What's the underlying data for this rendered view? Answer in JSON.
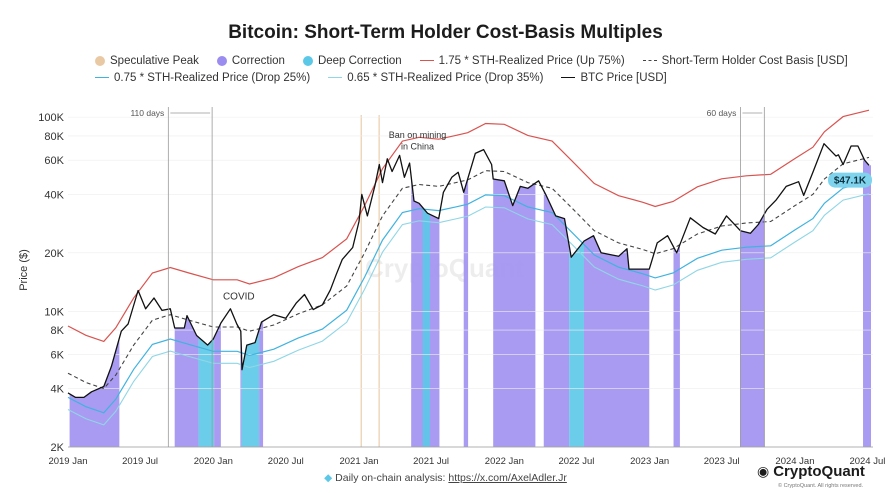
{
  "chart_data": {
    "type": "line",
    "title": "Bitcoin: Short-Term Holder Cost-Basis Multiples",
    "ylabel": "Price ($)",
    "xlabel": "",
    "yscale": "log",
    "ylim": [
      2000,
      130000
    ],
    "xlim": [
      "2019-01-01",
      "2024-07-15"
    ],
    "yticks": [
      {
        "v": 2000,
        "label": "2K"
      },
      {
        "v": 4000,
        "label": "4K"
      },
      {
        "v": 6000,
        "label": "6K"
      },
      {
        "v": 8000,
        "label": "8K"
      },
      {
        "v": 10000,
        "label": "10K"
      },
      {
        "v": 20000,
        "label": "20K"
      },
      {
        "v": 40000,
        "label": "40K"
      },
      {
        "v": 60000,
        "label": "60K"
      },
      {
        "v": 80000,
        "label": "80K"
      },
      {
        "v": 100000,
        "label": "100K"
      }
    ],
    "xticks": [
      {
        "date": "2019-01-01",
        "label": "2019 Jan"
      },
      {
        "date": "2019-07-01",
        "label": "2019 Jul"
      },
      {
        "date": "2020-01-01",
        "label": "2020 Jan"
      },
      {
        "date": "2020-07-01",
        "label": "2020 Jul"
      },
      {
        "date": "2021-01-01",
        "label": "2021 Jan"
      },
      {
        "date": "2021-07-01",
        "label": "2021 Jul"
      },
      {
        "date": "2022-01-01",
        "label": "2022 Jan"
      },
      {
        "date": "2022-07-01",
        "label": "2022 Jul"
      },
      {
        "date": "2023-01-01",
        "label": "2023 Jan"
      },
      {
        "date": "2023-07-01",
        "label": "2023 Jul"
      },
      {
        "date": "2024-01-01",
        "label": "2024 Jan"
      },
      {
        "date": "2024-07-01",
        "label": "2024 Jul"
      }
    ],
    "legend": [
      {
        "name": "Speculative Peak",
        "kind": "dot",
        "color": "#e9c9a3"
      },
      {
        "name": "Correction",
        "kind": "dot",
        "color": "#9b8cf0"
      },
      {
        "name": "Deep Correction",
        "kind": "dot",
        "color": "#5cc8e8"
      },
      {
        "name": "1.75 * STH-Realized Price (Up 75%)",
        "kind": "line",
        "color": "#d9534f"
      },
      {
        "name": "Short-Term Holder Cost Basis [USD]",
        "kind": "dash",
        "color": "#444444"
      },
      {
        "name": "0.75 * STH-Realized Price (Drop 25%)",
        "kind": "line",
        "color": "#3fb3df"
      },
      {
        "name": "0.65 * STH-Realized Price (Drop 35%)",
        "kind": "line",
        "color": "#8fd6e6"
      },
      {
        "name": "BTC Price [USD]",
        "kind": "line",
        "color": "#111111"
      }
    ],
    "btc_price": [
      [
        "2019-01-01",
        3800
      ],
      [
        "2019-01-20",
        3600
      ],
      [
        "2019-02-10",
        3600
      ],
      [
        "2019-03-01",
        3850
      ],
      [
        "2019-04-01",
        4100
      ],
      [
        "2019-04-20",
        5200
      ],
      [
        "2019-05-15",
        7900
      ],
      [
        "2019-06-01",
        8600
      ],
      [
        "2019-06-26",
        12800
      ],
      [
        "2019-07-15",
        10300
      ],
      [
        "2019-08-05",
        11700
      ],
      [
        "2019-08-25",
        10100
      ],
      [
        "2019-09-15",
        10300
      ],
      [
        "2019-09-26",
        8200
      ],
      [
        "2019-10-20",
        8200
      ],
      [
        "2019-10-27",
        9500
      ],
      [
        "2019-11-20",
        7500
      ],
      [
        "2019-12-18",
        6700
      ],
      [
        "2020-01-01",
        7200
      ],
      [
        "2020-01-20",
        8700
      ],
      [
        "2020-02-13",
        10300
      ],
      [
        "2020-02-29",
        8600
      ],
      [
        "2020-03-10",
        7900
      ],
      [
        "2020-03-13",
        5000
      ],
      [
        "2020-03-25",
        6700
      ],
      [
        "2020-04-15",
        6900
      ],
      [
        "2020-05-01",
        8800
      ],
      [
        "2020-06-01",
        9600
      ],
      [
        "2020-07-01",
        9200
      ],
      [
        "2020-07-27",
        11000
      ],
      [
        "2020-08-17",
        12200
      ],
      [
        "2020-09-08",
        10200
      ],
      [
        "2020-10-01",
        10800
      ],
      [
        "2020-10-21",
        12900
      ],
      [
        "2020-11-05",
        15500
      ],
      [
        "2020-11-20",
        18500
      ],
      [
        "2020-12-16",
        21300
      ],
      [
        "2021-01-01",
        29000
      ],
      [
        "2021-01-08",
        40000
      ],
      [
        "2021-01-22",
        31000
      ],
      [
        "2021-02-10",
        44500
      ],
      [
        "2021-02-21",
        57000
      ],
      [
        "2021-03-01",
        46000
      ],
      [
        "2021-03-13",
        61000
      ],
      [
        "2021-03-25",
        52500
      ],
      [
        "2021-04-13",
        63500
      ],
      [
        "2021-04-25",
        49000
      ],
      [
        "2021-05-08",
        58000
      ],
      [
        "2021-05-19",
        37000
      ],
      [
        "2021-06-01",
        36000
      ],
      [
        "2021-06-22",
        32000
      ],
      [
        "2021-07-20",
        30000
      ],
      [
        "2021-08-01",
        41000
      ],
      [
        "2021-08-22",
        49000
      ],
      [
        "2021-09-07",
        52000
      ],
      [
        "2021-09-21",
        41000
      ],
      [
        "2021-10-20",
        65000
      ],
      [
        "2021-11-10",
        68000
      ],
      [
        "2021-11-30",
        57000
      ],
      [
        "2021-12-04",
        48000
      ],
      [
        "2022-01-01",
        47000
      ],
      [
        "2022-01-22",
        35000
      ],
      [
        "2022-02-10",
        44000
      ],
      [
        "2022-03-01",
        43000
      ],
      [
        "2022-03-28",
        47000
      ],
      [
        "2022-04-15",
        40000
      ],
      [
        "2022-05-10",
        31000
      ],
      [
        "2022-06-01",
        30000
      ],
      [
        "2022-06-18",
        19000
      ],
      [
        "2022-07-20",
        23000
      ],
      [
        "2022-08-13",
        24500
      ],
      [
        "2022-09-01",
        20000
      ],
      [
        "2022-10-15",
        19200
      ],
      [
        "2022-11-05",
        21000
      ],
      [
        "2022-11-10",
        16500
      ],
      [
        "2022-12-31",
        16500
      ],
      [
        "2023-01-20",
        22500
      ],
      [
        "2023-02-15",
        24500
      ],
      [
        "2023-03-10",
        20000
      ],
      [
        "2023-04-13",
        30300
      ],
      [
        "2023-05-15",
        27000
      ],
      [
        "2023-06-15",
        25000
      ],
      [
        "2023-07-13",
        31000
      ],
      [
        "2023-08-17",
        26000
      ],
      [
        "2023-09-11",
        25200
      ],
      [
        "2023-10-01",
        28000
      ],
      [
        "2023-10-23",
        33500
      ],
      [
        "2023-11-15",
        37500
      ],
      [
        "2023-12-10",
        44000
      ],
      [
        "2024-01-10",
        46500
      ],
      [
        "2024-01-23",
        39500
      ],
      [
        "2024-02-15",
        52000
      ],
      [
        "2024-03-14",
        73000
      ],
      [
        "2024-04-13",
        63000
      ],
      [
        "2024-04-19",
        64000
      ],
      [
        "2024-05-01",
        57000
      ],
      [
        "2024-05-21",
        71000
      ],
      [
        "2024-06-07",
        71000
      ],
      [
        "2024-06-24",
        60000
      ],
      [
        "2024-07-05",
        56500
      ]
    ],
    "sth_cost_basis": [
      [
        "2019-01-01",
        4800
      ],
      [
        "2019-02-15",
        4300
      ],
      [
        "2019-04-01",
        4000
      ],
      [
        "2019-05-01",
        4700
      ],
      [
        "2019-06-15",
        6700
      ],
      [
        "2019-08-01",
        9000
      ],
      [
        "2019-09-15",
        9600
      ],
      [
        "2019-11-01",
        9000
      ],
      [
        "2020-01-01",
        8300
      ],
      [
        "2020-03-01",
        8300
      ],
      [
        "2020-04-01",
        7900
      ],
      [
        "2020-06-01",
        8500
      ],
      [
        "2020-08-01",
        9700
      ],
      [
        "2020-10-01",
        10800
      ],
      [
        "2020-12-01",
        13500
      ],
      [
        "2021-01-15",
        20000
      ],
      [
        "2021-03-01",
        31000
      ],
      [
        "2021-04-20",
        43000
      ],
      [
        "2021-06-01",
        45000
      ],
      [
        "2021-07-20",
        44000
      ],
      [
        "2021-09-01",
        46000
      ],
      [
        "2021-10-01",
        47500
      ],
      [
        "2021-11-15",
        53000
      ],
      [
        "2022-01-01",
        52500
      ],
      [
        "2022-03-01",
        46000
      ],
      [
        "2022-05-01",
        43000
      ],
      [
        "2022-06-20",
        34000
      ],
      [
        "2022-08-15",
        26000
      ],
      [
        "2022-10-15",
        22500
      ],
      [
        "2022-12-15",
        20800
      ],
      [
        "2023-01-15",
        19800
      ],
      [
        "2023-03-01",
        21000
      ],
      [
        "2023-05-01",
        25000
      ],
      [
        "2023-07-01",
        27500
      ],
      [
        "2023-09-01",
        28500
      ],
      [
        "2023-11-01",
        29000
      ],
      [
        "2024-01-01",
        35000
      ],
      [
        "2024-02-15",
        40000
      ],
      [
        "2024-03-15",
        48000
      ],
      [
        "2024-05-01",
        57500
      ],
      [
        "2024-07-05",
        62000
      ]
    ],
    "bands": [
      {
        "type": "correction",
        "from": "2019-01-05",
        "to": "2019-05-10"
      },
      {
        "type": "correction",
        "from": "2019-09-26",
        "to": "2019-11-25"
      },
      {
        "type": "deep_correction",
        "from": "2019-11-25",
        "to": "2020-01-03"
      },
      {
        "type": "correction",
        "from": "2020-01-03",
        "to": "2020-01-20"
      },
      {
        "type": "correction",
        "from": "2020-03-09",
        "to": "2020-03-12"
      },
      {
        "type": "deep_correction",
        "from": "2020-03-12",
        "to": "2020-04-25"
      },
      {
        "type": "correction",
        "from": "2020-04-25",
        "to": "2020-05-05"
      },
      {
        "type": "speculative_peak",
        "from": "2021-01-05",
        "to": "2021-01-08"
      },
      {
        "type": "speculative_peak",
        "from": "2021-02-19",
        "to": "2021-02-21"
      },
      {
        "type": "correction",
        "from": "2021-05-12",
        "to": "2021-07-22"
      },
      {
        "type": "deep_correction",
        "from": "2021-06-10",
        "to": "2021-06-28"
      },
      {
        "type": "correction",
        "from": "2021-09-21",
        "to": "2021-10-02"
      },
      {
        "type": "correction",
        "from": "2021-12-04",
        "to": "2022-03-20"
      },
      {
        "type": "correction",
        "from": "2022-04-10",
        "to": "2022-06-13"
      },
      {
        "type": "deep_correction",
        "from": "2022-06-13",
        "to": "2022-07-20"
      },
      {
        "type": "correction",
        "from": "2022-07-20",
        "to": "2022-12-31"
      },
      {
        "type": "correction",
        "from": "2023-03-02",
        "to": "2023-03-18"
      },
      {
        "type": "correction",
        "from": "2023-08-17",
        "to": "2023-10-17"
      },
      {
        "type": "correction",
        "from": "2024-06-20",
        "to": "2024-07-10"
      }
    ],
    "annotations": [
      {
        "text": "110 days",
        "kind": "span",
        "from": "2019-09-10",
        "to": "2019-12-29"
      },
      {
        "text": "60 days",
        "kind": "span",
        "from": "2023-08-17",
        "to": "2023-10-16"
      },
      {
        "text": "COVID",
        "kind": "label",
        "date": "2020-03-05",
        "value": 11500
      },
      {
        "text": "Ban on mining",
        "kind": "label",
        "date": "2021-05-28",
        "value": 78000
      },
      {
        "text": "in China",
        "kind": "label",
        "date": "2021-05-28",
        "value": 68000
      }
    ],
    "current_value_label": "$47.1K",
    "current_value": 47100
  },
  "watermark": "CryptoQuant",
  "footer": {
    "text": "Daily on-chain analysis:",
    "link": "https://x.com/AxelAdler.Jr"
  },
  "brand": {
    "name": "CryptoQuant",
    "copyright": "© CryptoQuant. All rights reserved."
  },
  "colors": {
    "correction": "#a090f0",
    "deep_correction": "#5cc8e8",
    "speculative_peak": "#e9c9a3",
    "upper": "#d9534f",
    "lower75": "#3fb3df",
    "lower65": "#8fd6e6",
    "price": "#111111",
    "cost": "#444444"
  }
}
